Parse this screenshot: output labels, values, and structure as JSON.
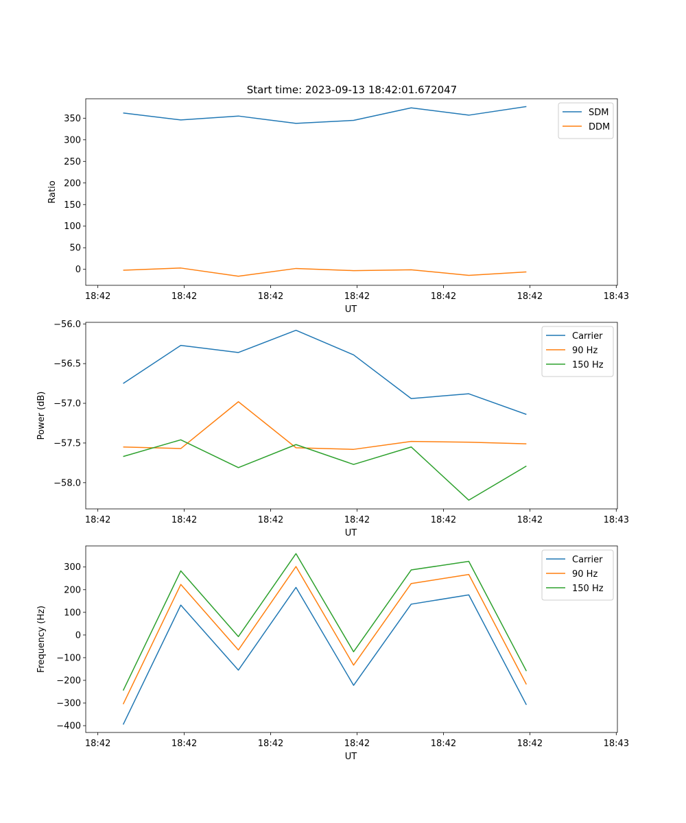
{
  "figure": {
    "title": "Start time: 2023-09-13 18:42:01.672047"
  },
  "chart_data": [
    {
      "type": "line",
      "ylabel": "Ratio",
      "xlabel": "UT",
      "ylim": [
        -37,
        395
      ],
      "xlim": [
        -0.65,
        8.58
      ],
      "yticks": [
        0,
        50,
        100,
        150,
        200,
        250,
        300,
        350
      ],
      "xtick_positions": [
        -0.44,
        1.06,
        2.56,
        4.06,
        5.56,
        7.06,
        8.56
      ],
      "xtick_labels": [
        "18:42",
        "18:42",
        "18:42",
        "18:42",
        "18:42",
        "18:42",
        "18:43"
      ],
      "legend": "top-right",
      "series": [
        {
          "name": "SDM",
          "color": "#1f77b4",
          "x": [
            0,
            1,
            2,
            3,
            4,
            5,
            6,
            7
          ],
          "values": [
            362,
            346,
            355,
            338,
            345,
            374,
            357,
            377
          ]
        },
        {
          "name": "DDM",
          "color": "#ff7f0e",
          "x": [
            0,
            1,
            2,
            3,
            4,
            5,
            6,
            7
          ],
          "values": [
            -2,
            3,
            -16,
            2,
            -3,
            -1,
            -14,
            -6
          ]
        }
      ]
    },
    {
      "type": "line",
      "ylabel": "Power (dB)",
      "xlabel": "UT",
      "ylim": [
        -58.33,
        -55.98
      ],
      "xlim": [
        -0.65,
        8.58
      ],
      "yticks": [
        -56.0,
        -56.5,
        -57.0,
        -57.5,
        -58.0
      ],
      "ytick_labels": [
        "−56.0",
        "−56.5",
        "−57.0",
        "−57.5",
        "−58.0"
      ],
      "xtick_positions": [
        -0.44,
        1.06,
        2.56,
        4.06,
        5.56,
        7.06,
        8.56
      ],
      "xtick_labels": [
        "18:42",
        "18:42",
        "18:42",
        "18:42",
        "18:42",
        "18:42",
        "18:43"
      ],
      "legend": "top-right",
      "series": [
        {
          "name": "Carrier",
          "color": "#1f77b4",
          "x": [
            0,
            1,
            2,
            3,
            4,
            5,
            6,
            7
          ],
          "values": [
            -56.75,
            -56.27,
            -56.36,
            -56.08,
            -56.39,
            -56.94,
            -56.88,
            -57.14
          ]
        },
        {
          "name": "90 Hz",
          "color": "#ff7f0e",
          "x": [
            0,
            1,
            2,
            3,
            4,
            5,
            6,
            7
          ],
          "values": [
            -57.55,
            -57.57,
            -56.98,
            -57.56,
            -57.58,
            -57.48,
            -57.49,
            -57.51
          ]
        },
        {
          "name": "150 Hz",
          "color": "#2ca02c",
          "x": [
            0,
            1,
            2,
            3,
            4,
            5,
            6,
            7
          ],
          "values": [
            -57.67,
            -57.46,
            -57.81,
            -57.52,
            -57.77,
            -57.55,
            -58.22,
            -57.79
          ]
        }
      ]
    },
    {
      "type": "line",
      "ylabel": "Frequency (Hz)",
      "xlabel": "UT",
      "ylim": [
        -430,
        393
      ],
      "xlim": [
        -0.65,
        8.58
      ],
      "yticks": [
        -400,
        -300,
        -200,
        -100,
        0,
        100,
        200,
        300
      ],
      "ytick_labels": [
        "−400",
        "−300",
        "−200",
        "−100",
        "0",
        "100",
        "200",
        "300"
      ],
      "xtick_positions": [
        -0.44,
        1.06,
        2.56,
        4.06,
        5.56,
        7.06,
        8.56
      ],
      "xtick_labels": [
        "18:42",
        "18:42",
        "18:42",
        "18:42",
        "18:42",
        "18:42",
        "18:43"
      ],
      "legend": "top-right",
      "series": [
        {
          "name": "Carrier",
          "color": "#1f77b4",
          "x": [
            0,
            1,
            2,
            3,
            4,
            5,
            6,
            7
          ],
          "values": [
            -395,
            132,
            -155,
            210,
            -222,
            136,
            177,
            -308
          ]
        },
        {
          "name": "90 Hz",
          "color": "#ff7f0e",
          "x": [
            0,
            1,
            2,
            3,
            4,
            5,
            6,
            7
          ],
          "values": [
            -305,
            223,
            -66,
            302,
            -133,
            227,
            267,
            -218
          ]
        },
        {
          "name": "150 Hz",
          "color": "#2ca02c",
          "x": [
            0,
            1,
            2,
            3,
            4,
            5,
            6,
            7
          ],
          "values": [
            -245,
            283,
            -7,
            359,
            -74,
            287,
            325,
            -159
          ]
        }
      ]
    }
  ]
}
